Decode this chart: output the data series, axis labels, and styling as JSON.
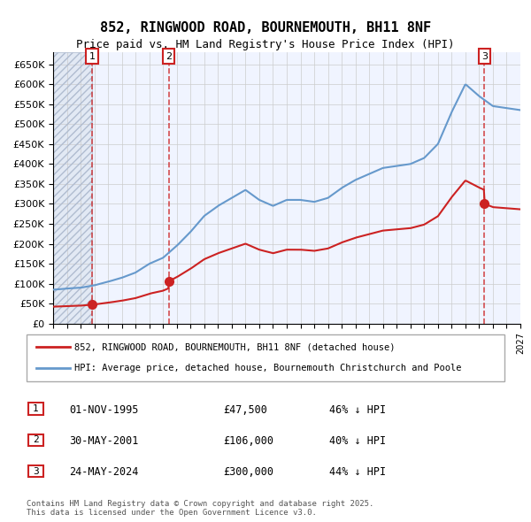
{
  "title": "852, RINGWOOD ROAD, BOURNEMOUTH, BH11 8NF",
  "subtitle": "Price paid vs. HM Land Registry's House Price Index (HPI)",
  "ylabel": "",
  "xlim": [
    1993,
    2027
  ],
  "ylim": [
    0,
    680000
  ],
  "yticks": [
    0,
    50000,
    100000,
    150000,
    200000,
    250000,
    300000,
    350000,
    400000,
    450000,
    500000,
    550000,
    600000,
    650000
  ],
  "ytick_labels": [
    "£0",
    "£50K",
    "£100K",
    "£150K",
    "£200K",
    "£250K",
    "£300K",
    "£350K",
    "£400K",
    "£450K",
    "£500K",
    "£550K",
    "£600K",
    "£650K"
  ],
  "sale_dates": [
    1995.83,
    2001.41,
    2024.39
  ],
  "sale_prices": [
    47500,
    106000,
    300000
  ],
  "sale_labels": [
    "1",
    "2",
    "3"
  ],
  "hpi_color": "#6699cc",
  "price_color": "#cc2222",
  "legend_price": "852, RINGWOOD ROAD, BOURNEMOUTH, BH11 8NF (detached house)",
  "legend_hpi": "HPI: Average price, detached house, Bournemouth Christchurch and Poole",
  "table_rows": [
    [
      "1",
      "01-NOV-1995",
      "£47,500",
      "46% ↓ HPI"
    ],
    [
      "2",
      "30-MAY-2001",
      "£106,000",
      "40% ↓ HPI"
    ],
    [
      "3",
      "24-MAY-2024",
      "£300,000",
      "44% ↓ HPI"
    ]
  ],
  "footer": "Contains HM Land Registry data © Crown copyright and database right 2025.\nThis data is licensed under the Open Government Licence v3.0.",
  "background_color": "#ffffff",
  "plot_bg_color": "#f0f4ff",
  "hatch_color": "#d0d8e8"
}
